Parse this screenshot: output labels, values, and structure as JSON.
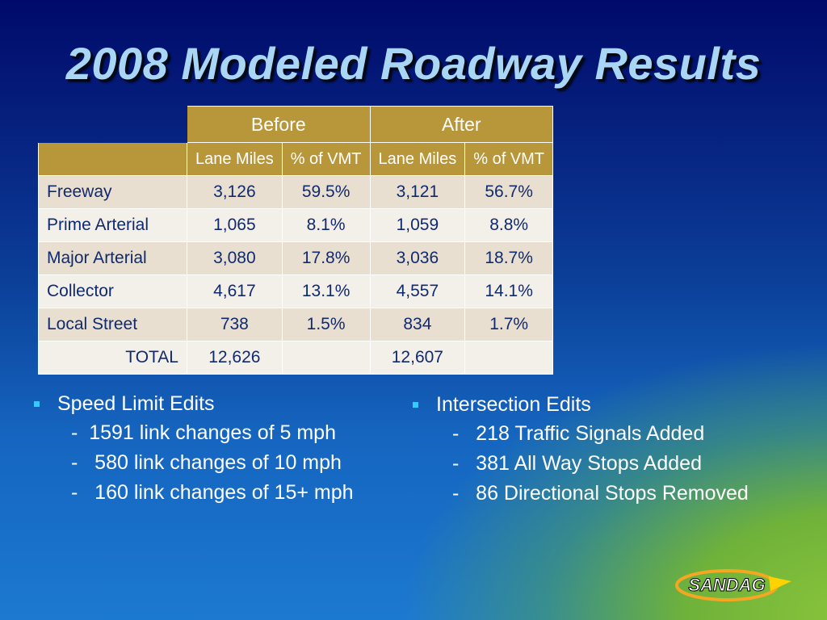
{
  "slide": {
    "title": "2008 Modeled Roadway Results"
  },
  "table": {
    "group_headers": [
      "Before",
      "After"
    ],
    "sub_headers": [
      "Lane Miles",
      "% of VMT",
      "Lane Miles",
      "% of VMT"
    ],
    "rows": [
      {
        "label": "Freeway",
        "cells": [
          "3,126",
          "59.5%",
          "3,121",
          "56.7%"
        ]
      },
      {
        "label": "Prime Arterial",
        "cells": [
          "1,065",
          "8.1%",
          "1,059",
          "8.8%"
        ]
      },
      {
        "label": "Major Arterial",
        "cells": [
          "3,080",
          "17.8%",
          "3,036",
          "18.7%"
        ]
      },
      {
        "label": "Collector",
        "cells": [
          "4,617",
          "13.1%",
          "4,557",
          "14.1%"
        ]
      },
      {
        "label": "Local Street",
        "cells": [
          "738",
          "1.5%",
          "834",
          "1.7%"
        ]
      },
      {
        "label": "TOTAL",
        "cells": [
          "12,626",
          "",
          "12,607",
          ""
        ]
      }
    ]
  },
  "left_list": {
    "heading": "Speed Limit Edits",
    "items": [
      "-  1591 link changes of 5 mph",
      "-   580 link changes of 10 mph",
      "-   160 link changes of 15+ mph"
    ]
  },
  "right_list": {
    "heading": "Intersection Edits",
    "items": [
      "-   218 Traffic Signals Added",
      "-   381 All Way Stops Added",
      "-   86 Directional Stops Removed"
    ]
  },
  "logo": {
    "text": "SANDAG",
    "colors": {
      "ring": "#f5a623",
      "arrow": "#ffd200",
      "text": "#ffffff"
    }
  }
}
